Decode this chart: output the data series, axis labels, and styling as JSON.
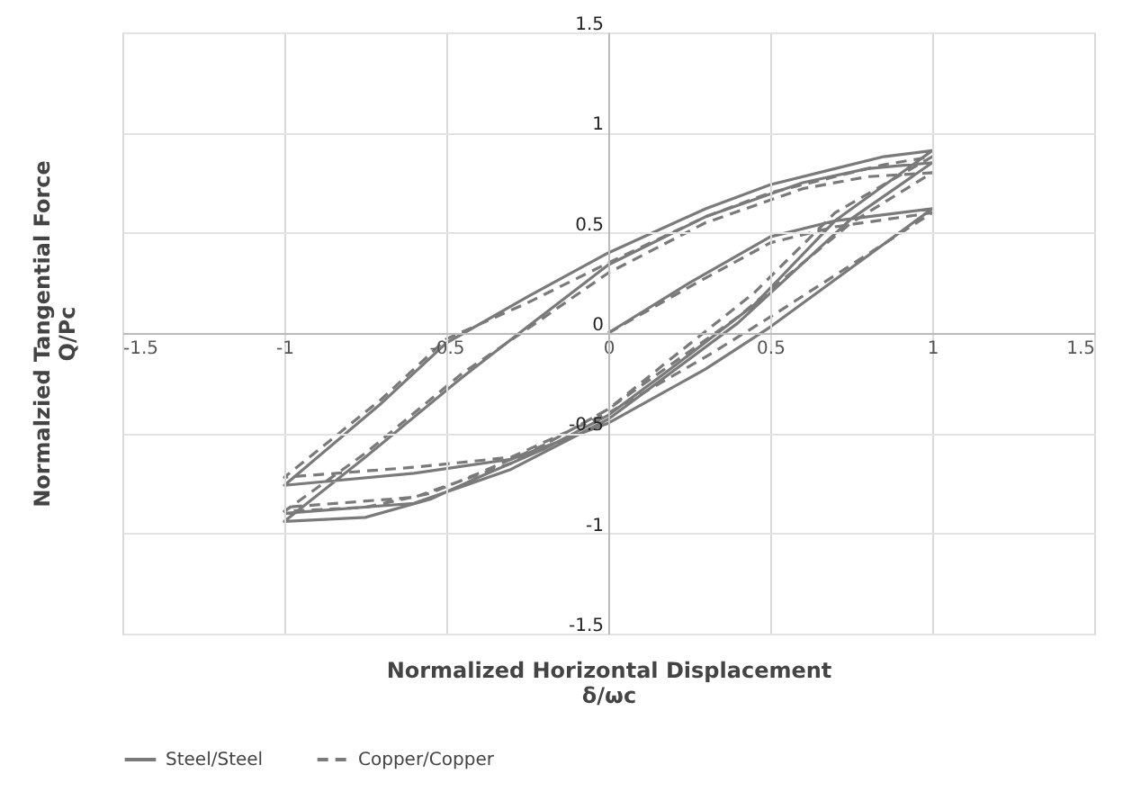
{
  "chart_data": {
    "type": "line",
    "xlabel": "Normalized Horizontal Displacement\nδ/ωc",
    "ylabel": "Normalzied Tangential Force\nQ/Pc",
    "xlim": [
      -1.5,
      1.5
    ],
    "xticks": [
      -1.5,
      -1,
      -0.5,
      0,
      0.5,
      1,
      1.5
    ],
    "ylim": [
      -1.5,
      1.5
    ],
    "yticks": [
      -1.5,
      -1,
      -0.5,
      0,
      0.5,
      1,
      1.5
    ],
    "grid": true,
    "legend": "bottom",
    "marker": "none",
    "series": [
      {
        "name": "Steel/Steel",
        "color": "#7a7a7a",
        "line_style": "solid",
        "x": [
          0,
          0.25,
          0.5,
          0.7,
          1,
          0.5,
          0.3,
          0,
          -0.3,
          -0.6,
          -1,
          -0.7,
          -0.5,
          -0.25,
          0,
          0.3,
          0.5,
          0.7,
          0.85,
          1,
          0.7,
          0.45,
          0.2,
          0,
          -0.2,
          -0.4,
          -0.55,
          -0.75,
          -1,
          -0.75,
          -0.45,
          -0.25,
          0,
          0.3,
          0.6,
          0.8,
          1,
          0.75,
          0.4,
          0,
          -0.3,
          -0.6,
          -1
        ],
        "values": [
          0,
          0.25,
          0.48,
          0.56,
          0.62,
          0.03,
          -0.18,
          -0.45,
          -0.63,
          -0.7,
          -0.76,
          -0.35,
          -0.05,
          0.18,
          0.4,
          0.62,
          0.74,
          0.82,
          0.88,
          0.91,
          0.56,
          0.14,
          -0.17,
          -0.41,
          -0.58,
          -0.72,
          -0.83,
          -0.92,
          -0.94,
          -0.62,
          -0.22,
          0.03,
          0.34,
          0.58,
          0.75,
          0.82,
          0.85,
          0.57,
          0.05,
          -0.43,
          -0.68,
          -0.85,
          -0.9
        ]
      },
      {
        "name": "Copper/Copper",
        "color": "#7a7a7a",
        "line_style": "dashed",
        "x": [
          0,
          0.25,
          0.5,
          0.7,
          1,
          0.5,
          0.3,
          0,
          -0.3,
          -0.6,
          -1,
          -0.7,
          -0.5,
          -0.25,
          0,
          0.3,
          0.5,
          0.7,
          0.85,
          1,
          0.7,
          0.45,
          0.2,
          0,
          -0.2,
          -0.4,
          -0.55,
          -0.75,
          -1,
          -0.75,
          -0.45,
          -0.25,
          0,
          0.3,
          0.6,
          0.8,
          1,
          0.75,
          0.4,
          0,
          -0.3,
          -0.6,
          -1
        ],
        "values": [
          0,
          0.23,
          0.45,
          0.53,
          0.6,
          0.08,
          -0.12,
          -0.4,
          -0.62,
          -0.67,
          -0.72,
          -0.33,
          -0.03,
          0.15,
          0.35,
          0.58,
          0.7,
          0.78,
          0.84,
          0.88,
          0.6,
          0.2,
          -0.12,
          -0.38,
          -0.56,
          -0.7,
          -0.8,
          -0.87,
          -0.89,
          -0.6,
          -0.2,
          0.02,
          0.3,
          0.55,
          0.72,
          0.78,
          0.8,
          0.55,
          0.08,
          -0.38,
          -0.65,
          -0.82,
          -0.87
        ]
      }
    ]
  }
}
